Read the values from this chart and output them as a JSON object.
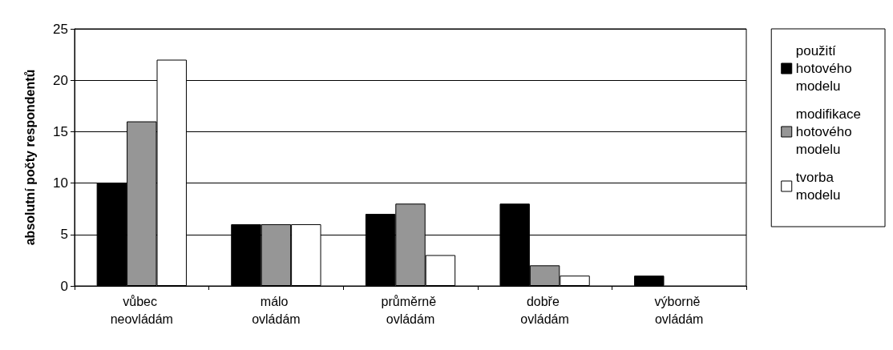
{
  "chart_data": {
    "type": "bar",
    "ylabel": "absolutní počty respondentů",
    "categories": [
      "vůbec neovládám",
      "málo ovládám",
      "průměrně ovládám",
      "dobře ovládám",
      "výborně ovládám"
    ],
    "series": [
      {
        "name": "použití hotového modelu",
        "color": "#000000",
        "values": [
          10,
          6,
          7,
          8,
          1
        ]
      },
      {
        "name": "modifikace hotového modelu",
        "color": "#969696",
        "values": [
          16,
          6,
          8,
          2,
          0
        ]
      },
      {
        "name": "tvorba modelu",
        "color": "#ffffff",
        "values": [
          22,
          6,
          3,
          1,
          0
        ]
      }
    ],
    "ylim": [
      0,
      25
    ],
    "yticks": [
      0,
      5,
      10,
      15,
      20,
      25
    ],
    "grid": "y",
    "legend": "right"
  }
}
